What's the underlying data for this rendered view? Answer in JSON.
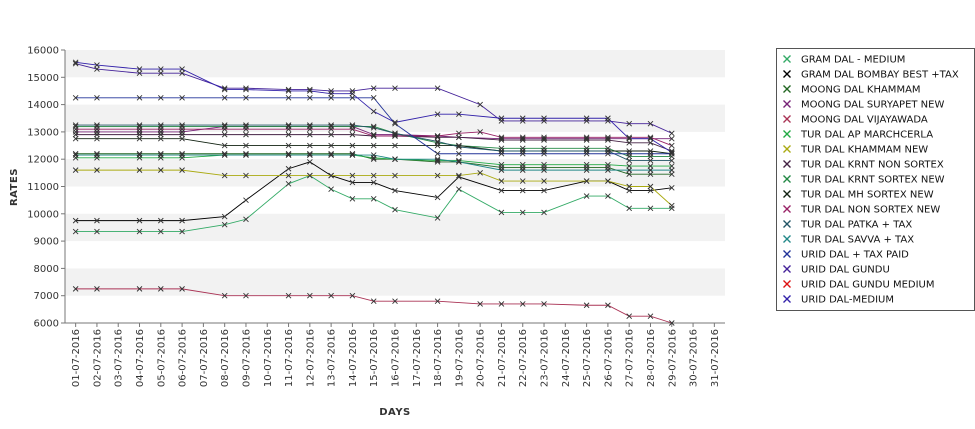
{
  "chart_data": {
    "type": "line",
    "xlabel": "DAYS",
    "ylabel": "RATES",
    "ylim": [
      6000,
      16000
    ],
    "yticks": [
      6000,
      7000,
      8000,
      9000,
      10000,
      11000,
      12000,
      13000,
      14000,
      15000,
      16000
    ],
    "grid": "alternating horizontal bands",
    "legend_position": "right",
    "categories": [
      "01-07-2016",
      "02-07-2016",
      "03-07-2016",
      "04-07-2016",
      "05-07-2016",
      "06-07-2016",
      "07-07-2016",
      "08-07-2016",
      "09-07-2016",
      "10-07-2016",
      "11-07-2016",
      "12-07-2016",
      "13-07-2016",
      "14-07-2016",
      "15-07-2016",
      "16-07-2016",
      "17-07-2016",
      "18-07-2016",
      "19-07-2016",
      "20-07-2016",
      "21-07-2016",
      "22-07-2016",
      "23-07-2016",
      "24-07-2016",
      "25-07-2016",
      "26-07-2016",
      "27-07-2016",
      "28-07-2016",
      "29-07-2016",
      "30-07-2016",
      "31-07-2016"
    ],
    "series": [
      {
        "name": "GRAM DAL - MEDIUM",
        "color": "#33aa66",
        "values": [
          9350,
          9350,
          null,
          9350,
          9350,
          9350,
          null,
          9600,
          9800,
          null,
          11100,
          11400,
          10900,
          10550,
          10550,
          10150,
          null,
          9850,
          10900,
          null,
          10050,
          10050,
          10050,
          null,
          10650,
          10650,
          10200,
          10200,
          10200,
          null,
          null
        ]
      },
      {
        "name": "GRAM DAL BOMBAY BEST +TAX",
        "color": "#000000",
        "values": [
          9750,
          9750,
          null,
          9750,
          9750,
          9750,
          null,
          9900,
          10500,
          null,
          11650,
          11900,
          11400,
          11150,
          11150,
          10850,
          null,
          10600,
          11350,
          null,
          10850,
          10850,
          10850,
          null,
          11200,
          11200,
          10850,
          10850,
          10950,
          null,
          null
        ]
      },
      {
        "name": "MOONG DAL KHAMMAM",
        "color": "#226622",
        "values": [
          12200,
          12200,
          null,
          12200,
          12200,
          12200,
          null,
          12200,
          12200,
          null,
          12200,
          12200,
          12200,
          12200,
          12000,
          12000,
          null,
          11900,
          11900,
          null,
          11700,
          11700,
          11700,
          null,
          11700,
          11700,
          11450,
          11450,
          11450,
          null,
          null
        ]
      },
      {
        "name": "MOONG DAL SURYAPET NEW",
        "color": "#772277",
        "values": [
          13000,
          13000,
          null,
          13000,
          13000,
          13000,
          null,
          13200,
          13200,
          null,
          13200,
          13200,
          13200,
          13200,
          12900,
          12900,
          null,
          12850,
          12800,
          null,
          12750,
          12750,
          12750,
          null,
          12750,
          12750,
          12750,
          12750,
          12750,
          null,
          null
        ]
      },
      {
        "name": "MOONG DAL VIJAYAWADA",
        "color": "#aa3355",
        "values": [
          7250,
          7250,
          null,
          7250,
          7250,
          7250,
          null,
          7000,
          7000,
          null,
          7000,
          7000,
          7000,
          7000,
          6800,
          6800,
          null,
          6800,
          null,
          6700,
          6700,
          6700,
          6700,
          null,
          6650,
          6650,
          6250,
          6250,
          6000,
          null,
          null
        ]
      },
      {
        "name": "TUR DAL AP MARCHCERLA",
        "color": "#22aa44",
        "values": [
          12050,
          12050,
          null,
          12050,
          12050,
          12050,
          null,
          12150,
          12150,
          null,
          12150,
          12150,
          12150,
          12150,
          12050,
          12000,
          null,
          11950,
          11950,
          null,
          11800,
          11800,
          11800,
          null,
          11800,
          11800,
          11750,
          11750,
          11750,
          null,
          null
        ]
      },
      {
        "name": "TUR DAL KHAMMAM NEW",
        "color": "#aaaa11",
        "values": [
          11600,
          11600,
          null,
          11600,
          11600,
          11600,
          null,
          11400,
          11400,
          null,
          11400,
          11400,
          11400,
          11400,
          11400,
          11400,
          null,
          11400,
          11400,
          11500,
          11200,
          11200,
          11200,
          null,
          11200,
          11200,
          11000,
          11000,
          10300,
          null,
          null
        ]
      },
      {
        "name": "TUR DAL KRNT NON SORTEX",
        "color": "#442244",
        "values": [
          12900,
          12900,
          null,
          12900,
          12900,
          12900,
          null,
          12900,
          12900,
          null,
          12900,
          12900,
          12900,
          12900,
          12850,
          12850,
          null,
          12800,
          12800,
          null,
          12700,
          12700,
          12700,
          null,
          12700,
          12700,
          12600,
          12600,
          12300,
          null,
          null
        ]
      },
      {
        "name": "TUR DAL KRNT SORTEX NEW",
        "color": "#228844",
        "values": [
          13200,
          13200,
          null,
          13200,
          13200,
          13200,
          null,
          13200,
          13200,
          null,
          13200,
          13200,
          13200,
          13200,
          13200,
          12950,
          null,
          12600,
          12500,
          null,
          12400,
          12400,
          12400,
          null,
          12400,
          12400,
          12100,
          12100,
          12100,
          null,
          null
        ]
      },
      {
        "name": "TUR DAL MH SORTEX NEW",
        "color": "#112211",
        "values": [
          12750,
          12750,
          null,
          12750,
          12750,
          12750,
          null,
          12500,
          12500,
          null,
          12500,
          12500,
          12500,
          12500,
          12500,
          12500,
          null,
          12500,
          12500,
          null,
          12300,
          12300,
          12300,
          null,
          12300,
          12300,
          12300,
          12300,
          12200,
          null,
          null
        ]
      },
      {
        "name": "TUR DAL NON SORTEX NEW",
        "color": "#992266",
        "values": [
          13100,
          13100,
          null,
          13100,
          13100,
          13100,
          null,
          13100,
          13100,
          null,
          13100,
          13100,
          13100,
          13100,
          12850,
          12850,
          null,
          12850,
          12950,
          13000,
          12800,
          12800,
          12800,
          null,
          12800,
          12800,
          12800,
          12800,
          12500,
          null,
          null
        ]
      },
      {
        "name": "TUR DAL PATKA + TAX",
        "color": "#225566",
        "values": [
          13250,
          13250,
          null,
          13250,
          13250,
          13250,
          null,
          13250,
          13250,
          null,
          13250,
          13250,
          13250,
          13250,
          13150,
          12950,
          null,
          12650,
          12450,
          null,
          12300,
          12300,
          12300,
          null,
          12300,
          12300,
          11950,
          11950,
          11950,
          null,
          null
        ]
      },
      {
        "name": "TUR DAL SAVVA + TAX",
        "color": "#228888",
        "values": [
          12150,
          12150,
          null,
          12150,
          12150,
          12150,
          null,
          12150,
          12150,
          null,
          12150,
          12150,
          12150,
          12150,
          12150,
          12000,
          null,
          12000,
          11900,
          null,
          11600,
          11600,
          11600,
          null,
          11600,
          11600,
          11600,
          11600,
          11600,
          null,
          null
        ]
      },
      {
        "name": "URID DAL + TAX PAID",
        "color": "#223399",
        "values": [
          14250,
          14250,
          null,
          14250,
          14250,
          14250,
          null,
          14250,
          14250,
          null,
          14250,
          14250,
          14250,
          14250,
          14250,
          13300,
          null,
          12200,
          12200,
          null,
          12200,
          12200,
          12200,
          null,
          12200,
          12200,
          12200,
          12200,
          12200,
          null,
          null
        ]
      },
      {
        "name": "URID DAL GUNDU",
        "color": "#442299",
        "values": [
          15500,
          15300,
          null,
          15150,
          15150,
          15150,
          null,
          14600,
          14600,
          null,
          14550,
          14550,
          14500,
          14500,
          14600,
          14600,
          null,
          14600,
          null,
          14000,
          13400,
          13400,
          13400,
          null,
          13400,
          13400,
          13300,
          13300,
          12950,
          null,
          null
        ]
      },
      {
        "name": "URID DAL GUNDU MEDIUM",
        "color": "#dd1111",
        "values": [
          null,
          null,
          null,
          null,
          null,
          null,
          null,
          null,
          null,
          null,
          null,
          null,
          null,
          null,
          null,
          null,
          null,
          null,
          null,
          null,
          null,
          null,
          null,
          null,
          null,
          null,
          null,
          null,
          null,
          null,
          null
        ]
      },
      {
        "name": "URID DAL-MEDIUM",
        "color": "#3322aa",
        "values": [
          15550,
          15450,
          null,
          15300,
          15300,
          15300,
          null,
          14550,
          14550,
          null,
          14500,
          14500,
          14400,
          14400,
          13750,
          13350,
          null,
          13650,
          13650,
          null,
          13500,
          13500,
          13500,
          null,
          13500,
          13500,
          12750,
          12750,
          12250,
          null,
          null
        ]
      }
    ]
  }
}
